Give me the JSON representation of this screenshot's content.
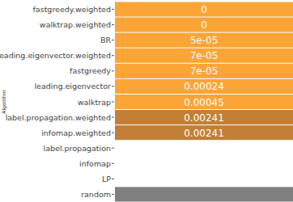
{
  "chart_data": {
    "type": "heatmap",
    "y_label": "Algorithm",
    "categories": [
      "fastgreedy.weighted",
      "walktrap.weighted",
      "BR",
      "leading.eigenvector.weighted",
      "fastgreedy",
      "leading.eigenvector",
      "walktrap",
      "label.propagation.weighted",
      "infomap.weighted",
      "label.propagation",
      "infomap",
      "LP",
      "random"
    ],
    "values": [
      0,
      0,
      5e-05,
      7e-05,
      7e-05,
      0.00024,
      0.00045,
      0.00241,
      0.00241,
      null,
      null,
      null,
      null
    ],
    "value_labels": [
      "0",
      "0",
      "5e-05",
      "7e-05",
      "7e-05",
      "0.00024",
      "0.00045",
      "0.00241",
      "0.00241",
      null,
      null,
      null,
      null
    ],
    "colors": [
      "#fba537",
      "#fba537",
      "#fba537",
      "#fba537",
      "#fba537",
      "#fba537",
      "#fba537",
      "#c27f36",
      "#c27f36",
      "#ffffff",
      "#ffffff",
      "#ffffff",
      "#808080"
    ],
    "data_labels": true
  }
}
